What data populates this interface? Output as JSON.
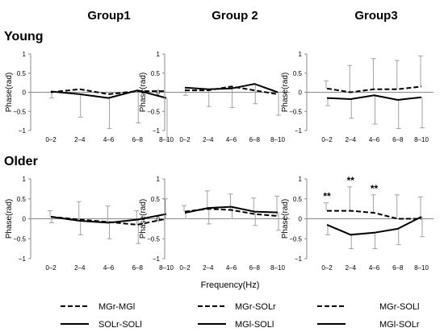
{
  "figure": {
    "group_titles": [
      "Group1",
      "Group 2",
      "Group3"
    ],
    "row_titles": [
      "Young",
      "Older"
    ],
    "ylabel": "Phase(rad)",
    "xlabel": "Frequency(Hz)"
  },
  "legend": [
    {
      "dashed": "MGr-MGl",
      "solid": "SOLr-SOLl"
    },
    {
      "dashed": "MGr-SOLr",
      "solid": "MGl-SOLl"
    },
    {
      "dashed": "MGr-SOLl",
      "solid": "MGl-SOLr"
    }
  ],
  "chart_data": [
    {
      "type": "line",
      "row": "Young",
      "group": "Group1",
      "categories": [
        "0–2",
        "2–4",
        "4–6",
        "6–8",
        "8–10"
      ],
      "ylim": [
        -1,
        1
      ],
      "yticks": [
        "1",
        "0.5",
        "0",
        "−0.5",
        "−1"
      ],
      "series": [
        {
          "name": "MGr-MGl",
          "style": "dashed",
          "values": [
            0.0,
            0.08,
            -0.05,
            0.03,
            0.03
          ],
          "err": [
            0,
            0,
            0,
            0,
            0
          ]
        },
        {
          "name": "SOLr-SOLl",
          "style": "solid",
          "values": [
            0.02,
            -0.05,
            -0.15,
            0.05,
            -0.15
          ],
          "err": [
            0.17,
            0.6,
            0.8,
            0.85,
            1.1
          ]
        }
      ],
      "annotations": []
    },
    {
      "type": "line",
      "row": "Young",
      "group": "Group 2",
      "categories": [
        "0–2",
        "2–4",
        "4–6",
        "6–8",
        "8–10"
      ],
      "ylim": [
        -1,
        1
      ],
      "yticks": [
        "1",
        "0.5",
        "0",
        "−0.5",
        "−1"
      ],
      "series": [
        {
          "name": "MGr-SOLr",
          "style": "dashed",
          "values": [
            0.05,
            0.05,
            0.15,
            0.05,
            -0.05
          ],
          "err": [
            0,
            0,
            0,
            0,
            0
          ]
        },
        {
          "name": "MGl-SOLl",
          "style": "solid",
          "values": [
            0.12,
            0.08,
            0.1,
            0.22,
            0.0
          ],
          "err": [
            0.2,
            0.45,
            0.5,
            0.52,
            0.6
          ]
        }
      ],
      "annotations": []
    },
    {
      "type": "line",
      "row": "Young",
      "group": "Group3",
      "categories": [
        "0–2",
        "2–4",
        "4–6",
        "6–8",
        "8–10"
      ],
      "ylim": [
        -1,
        1
      ],
      "yticks": [
        "1",
        "0.5",
        "0",
        "−0.5",
        "−1"
      ],
      "series": [
        {
          "name": "MGr-SOLl",
          "style": "dashed",
          "values": [
            0.1,
            0.0,
            0.08,
            0.08,
            0.15
          ],
          "err": [
            0.2,
            0.7,
            0.8,
            0.75,
            0.8
          ]
        },
        {
          "name": "MGl-SOLr",
          "style": "solid",
          "values": [
            -0.15,
            -0.18,
            -0.08,
            -0.2,
            -0.13
          ],
          "err": [
            0.2,
            0.5,
            0.75,
            0.75,
            0.8
          ]
        }
      ],
      "annotations": []
    },
    {
      "type": "line",
      "row": "Older",
      "group": "Group1",
      "categories": [
        "0–2",
        "2–4",
        "4–6",
        "6–8",
        "8–10"
      ],
      "ylim": [
        -1,
        1
      ],
      "yticks": [
        "1",
        "0.5",
        "0",
        "−0.5",
        "−1"
      ],
      "series": [
        {
          "name": "MGr-MGl",
          "style": "dashed",
          "values": [
            0.05,
            -0.02,
            -0.08,
            -0.15,
            0.0
          ],
          "err": [
            0.15,
            0.45,
            0.4,
            0.35,
            0.5
          ]
        },
        {
          "name": "SOLr-SOLl",
          "style": "solid",
          "values": [
            0.05,
            -0.05,
            -0.1,
            -0.02,
            0.12
          ],
          "err": [
            0.15,
            0.35,
            0.4,
            0.6,
            0.0
          ]
        }
      ],
      "annotations": []
    },
    {
      "type": "line",
      "row": "Older",
      "group": "Group 2",
      "categories": [
        "0–2",
        "2–4",
        "4–6",
        "6–8",
        "8–10"
      ],
      "ylim": [
        -1,
        1
      ],
      "yticks": [
        "1",
        "0.5",
        "0",
        "−0.5",
        "−1"
      ],
      "series": [
        {
          "name": "MGr-SOLr",
          "style": "dashed",
          "values": [
            0.18,
            0.25,
            0.22,
            0.12,
            0.07
          ],
          "err": [
            0.15,
            0.45,
            0.4,
            0.4,
            0.5
          ]
        },
        {
          "name": "MGl-SOLl",
          "style": "solid",
          "values": [
            0.15,
            0.27,
            0.3,
            0.18,
            0.16
          ],
          "err": [
            0.15,
            0.4,
            0.3,
            0.35,
            0.45
          ]
        }
      ],
      "annotations": []
    },
    {
      "type": "line",
      "row": "Older",
      "group": "Group3",
      "categories": [
        "0–2",
        "2–4",
        "4–6",
        "6–8",
        "8–10"
      ],
      "ylim": [
        -1,
        1
      ],
      "yticks": [
        "1",
        "0.5",
        "0",
        "−0.5",
        "−1"
      ],
      "series": [
        {
          "name": "MGr-SOLl",
          "style": "dashed",
          "values": [
            0.2,
            0.2,
            0.15,
            0.0,
            0.0
          ],
          "err": [
            0.2,
            0.6,
            0.45,
            0.6,
            0.55
          ]
        },
        {
          "name": "MGl-SOLr",
          "style": "solid",
          "values": [
            -0.15,
            -0.4,
            -0.35,
            -0.25,
            0.05
          ],
          "err": [
            0.25,
            0.35,
            0.4,
            0.4,
            0.5
          ]
        }
      ],
      "annotations": [
        {
          "category_index": 0,
          "label": "**"
        },
        {
          "category_index": 1,
          "label": "**"
        },
        {
          "category_index": 2,
          "label": "**"
        }
      ]
    }
  ]
}
